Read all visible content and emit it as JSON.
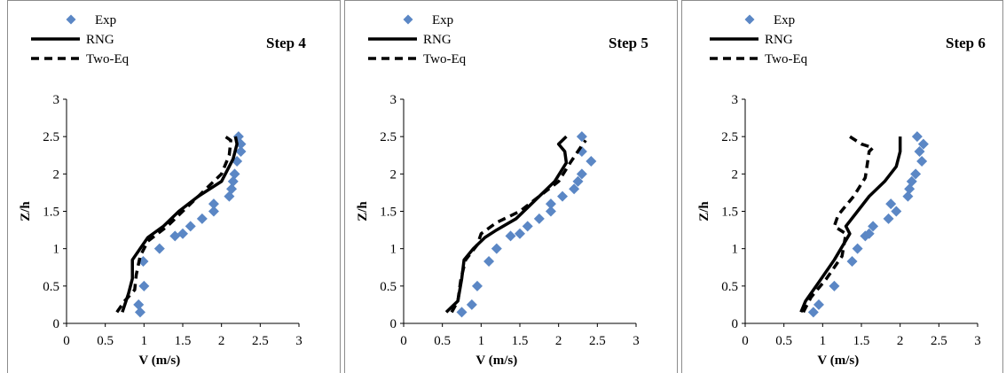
{
  "legend": {
    "exp": "Exp",
    "rng": "RNG",
    "two_eq": "Two-Eq"
  },
  "colors": {
    "exp_marker": "#5b87c5",
    "rng_line": "#000000",
    "two_eq_line": "#000000",
    "panel_border": "#8c8c8c"
  },
  "chart_data": [
    {
      "type": "line",
      "title": "Step 4",
      "xlabel": "V (m/s)",
      "ylabel": "Z/h",
      "xlim": [
        0,
        3
      ],
      "ylim": [
        0,
        3
      ],
      "xticks": [
        "0",
        "0.5",
        "1",
        "1.5",
        "2",
        "2.5",
        "3"
      ],
      "yticks": [
        "0",
        "0.5",
        "1",
        "1.5",
        "2",
        "2.5",
        "3"
      ],
      "grid": false,
      "legend_position": "top-left",
      "series": [
        {
          "name": "Exp",
          "style": "scatter-diamond",
          "x": [
            0.95,
            0.93,
            1.0,
            0.99,
            1.2,
            1.4,
            1.5,
            1.6,
            1.75,
            1.9,
            1.9,
            2.1,
            2.13,
            2.15,
            2.17,
            2.2,
            2.25,
            2.25,
            2.22
          ],
          "y": [
            0.15,
            0.25,
            0.5,
            0.83,
            1.0,
            1.17,
            1.2,
            1.3,
            1.4,
            1.5,
            1.6,
            1.7,
            1.8,
            1.9,
            2.0,
            2.17,
            2.3,
            2.4,
            2.5
          ]
        },
        {
          "name": "RNG",
          "style": "solid",
          "x": [
            0.72,
            0.8,
            0.85,
            0.85,
            0.95,
            1.05,
            1.25,
            1.45,
            1.7,
            2.0,
            2.15,
            2.2,
            2.18
          ],
          "y": [
            0.15,
            0.4,
            0.6,
            0.85,
            1.0,
            1.15,
            1.3,
            1.5,
            1.7,
            1.9,
            2.2,
            2.4,
            2.5
          ]
        },
        {
          "name": "Two-Eq",
          "style": "dashed",
          "x": [
            0.65,
            0.75,
            0.88,
            0.9,
            0.95,
            1.05,
            1.3,
            1.55,
            1.8,
            2.0,
            2.1,
            2.12,
            2.05
          ],
          "y": [
            0.15,
            0.3,
            0.45,
            0.65,
            0.9,
            1.1,
            1.3,
            1.55,
            1.8,
            2.0,
            2.25,
            2.45,
            2.5
          ]
        }
      ]
    },
    {
      "type": "line",
      "title": "Step 5",
      "xlabel": "V (m/s)",
      "ylabel": "Z/h",
      "xlim": [
        0,
        3
      ],
      "ylim": [
        0,
        3
      ],
      "xticks": [
        "0",
        "0.5",
        "1",
        "1.5",
        "2",
        "2.5",
        "3"
      ],
      "yticks": [
        "0",
        "0.5",
        "1",
        "1.5",
        "2",
        "2.5",
        "3"
      ],
      "grid": false,
      "legend_position": "top-left",
      "series": [
        {
          "name": "Exp",
          "style": "scatter-diamond",
          "x": [
            0.75,
            0.88,
            0.95,
            1.1,
            1.2,
            1.38,
            1.5,
            1.6,
            1.75,
            1.9,
            1.9,
            2.05,
            2.2,
            2.25,
            2.3,
            2.42,
            2.3,
            2.3
          ],
          "y": [
            0.15,
            0.25,
            0.5,
            0.83,
            1.0,
            1.17,
            1.2,
            1.3,
            1.4,
            1.5,
            1.6,
            1.7,
            1.8,
            1.9,
            2.0,
            2.17,
            2.3,
            2.5
          ]
        },
        {
          "name": "RNG",
          "style": "solid",
          "x": [
            0.55,
            0.7,
            0.75,
            0.78,
            0.9,
            1.05,
            1.2,
            1.45,
            1.65,
            1.75,
            1.95,
            2.1,
            2.08,
            2.0,
            2.1
          ],
          "y": [
            0.15,
            0.3,
            0.6,
            0.85,
            1.0,
            1.15,
            1.25,
            1.4,
            1.6,
            1.7,
            1.9,
            2.15,
            2.3,
            2.4,
            2.5
          ]
        },
        {
          "name": "Two-Eq",
          "style": "dashed",
          "x": [
            0.62,
            0.7,
            0.74,
            0.8,
            0.95,
            1.0,
            1.2,
            1.5,
            1.75,
            2.0,
            2.15,
            2.28,
            2.35
          ],
          "y": [
            0.15,
            0.3,
            0.6,
            0.85,
            1.05,
            1.2,
            1.35,
            1.5,
            1.7,
            1.9,
            2.15,
            2.35,
            2.45
          ]
        }
      ]
    },
    {
      "type": "line",
      "title": "Step 6",
      "xlabel": "V (m/s)",
      "ylabel": "Z/h",
      "xlim": [
        0,
        3
      ],
      "ylim": [
        0,
        3
      ],
      "xticks": [
        "0",
        "0.5",
        "1",
        "1.5",
        "2",
        "2.5",
        "3"
      ],
      "yticks": [
        "0",
        "0.5",
        "1",
        "1.5",
        "2",
        "2.5",
        "3"
      ],
      "grid": false,
      "legend_position": "top-left",
      "series": [
        {
          "name": "Exp",
          "style": "scatter-diamond",
          "x": [
            0.88,
            0.95,
            1.15,
            1.38,
            1.45,
            1.55,
            1.6,
            1.65,
            1.85,
            1.88,
            1.95,
            2.1,
            2.12,
            2.15,
            2.2,
            2.28,
            2.25,
            2.3,
            2.22
          ],
          "y": [
            0.15,
            0.25,
            0.5,
            0.83,
            1.0,
            1.17,
            1.2,
            1.3,
            1.4,
            1.6,
            1.5,
            1.7,
            1.8,
            1.9,
            2.0,
            2.17,
            2.3,
            2.4,
            2.5
          ]
        },
        {
          "name": "RNG",
          "style": "solid",
          "x": [
            0.72,
            0.78,
            0.95,
            1.15,
            1.35,
            1.3,
            1.45,
            1.6,
            1.8,
            1.95,
            2.0,
            2.0
          ],
          "y": [
            0.15,
            0.3,
            0.55,
            0.85,
            1.2,
            1.3,
            1.5,
            1.7,
            1.9,
            2.1,
            2.3,
            2.5
          ]
        },
        {
          "name": "Two-Eq",
          "style": "dashed",
          "x": [
            0.75,
            0.85,
            1.05,
            1.25,
            1.3,
            1.15,
            1.2,
            1.4,
            1.55,
            1.6,
            1.65,
            1.5,
            1.35
          ],
          "y": [
            0.15,
            0.35,
            0.6,
            0.9,
            1.2,
            1.3,
            1.45,
            1.7,
            1.95,
            2.3,
            2.35,
            2.4,
            2.5
          ]
        }
      ]
    }
  ]
}
